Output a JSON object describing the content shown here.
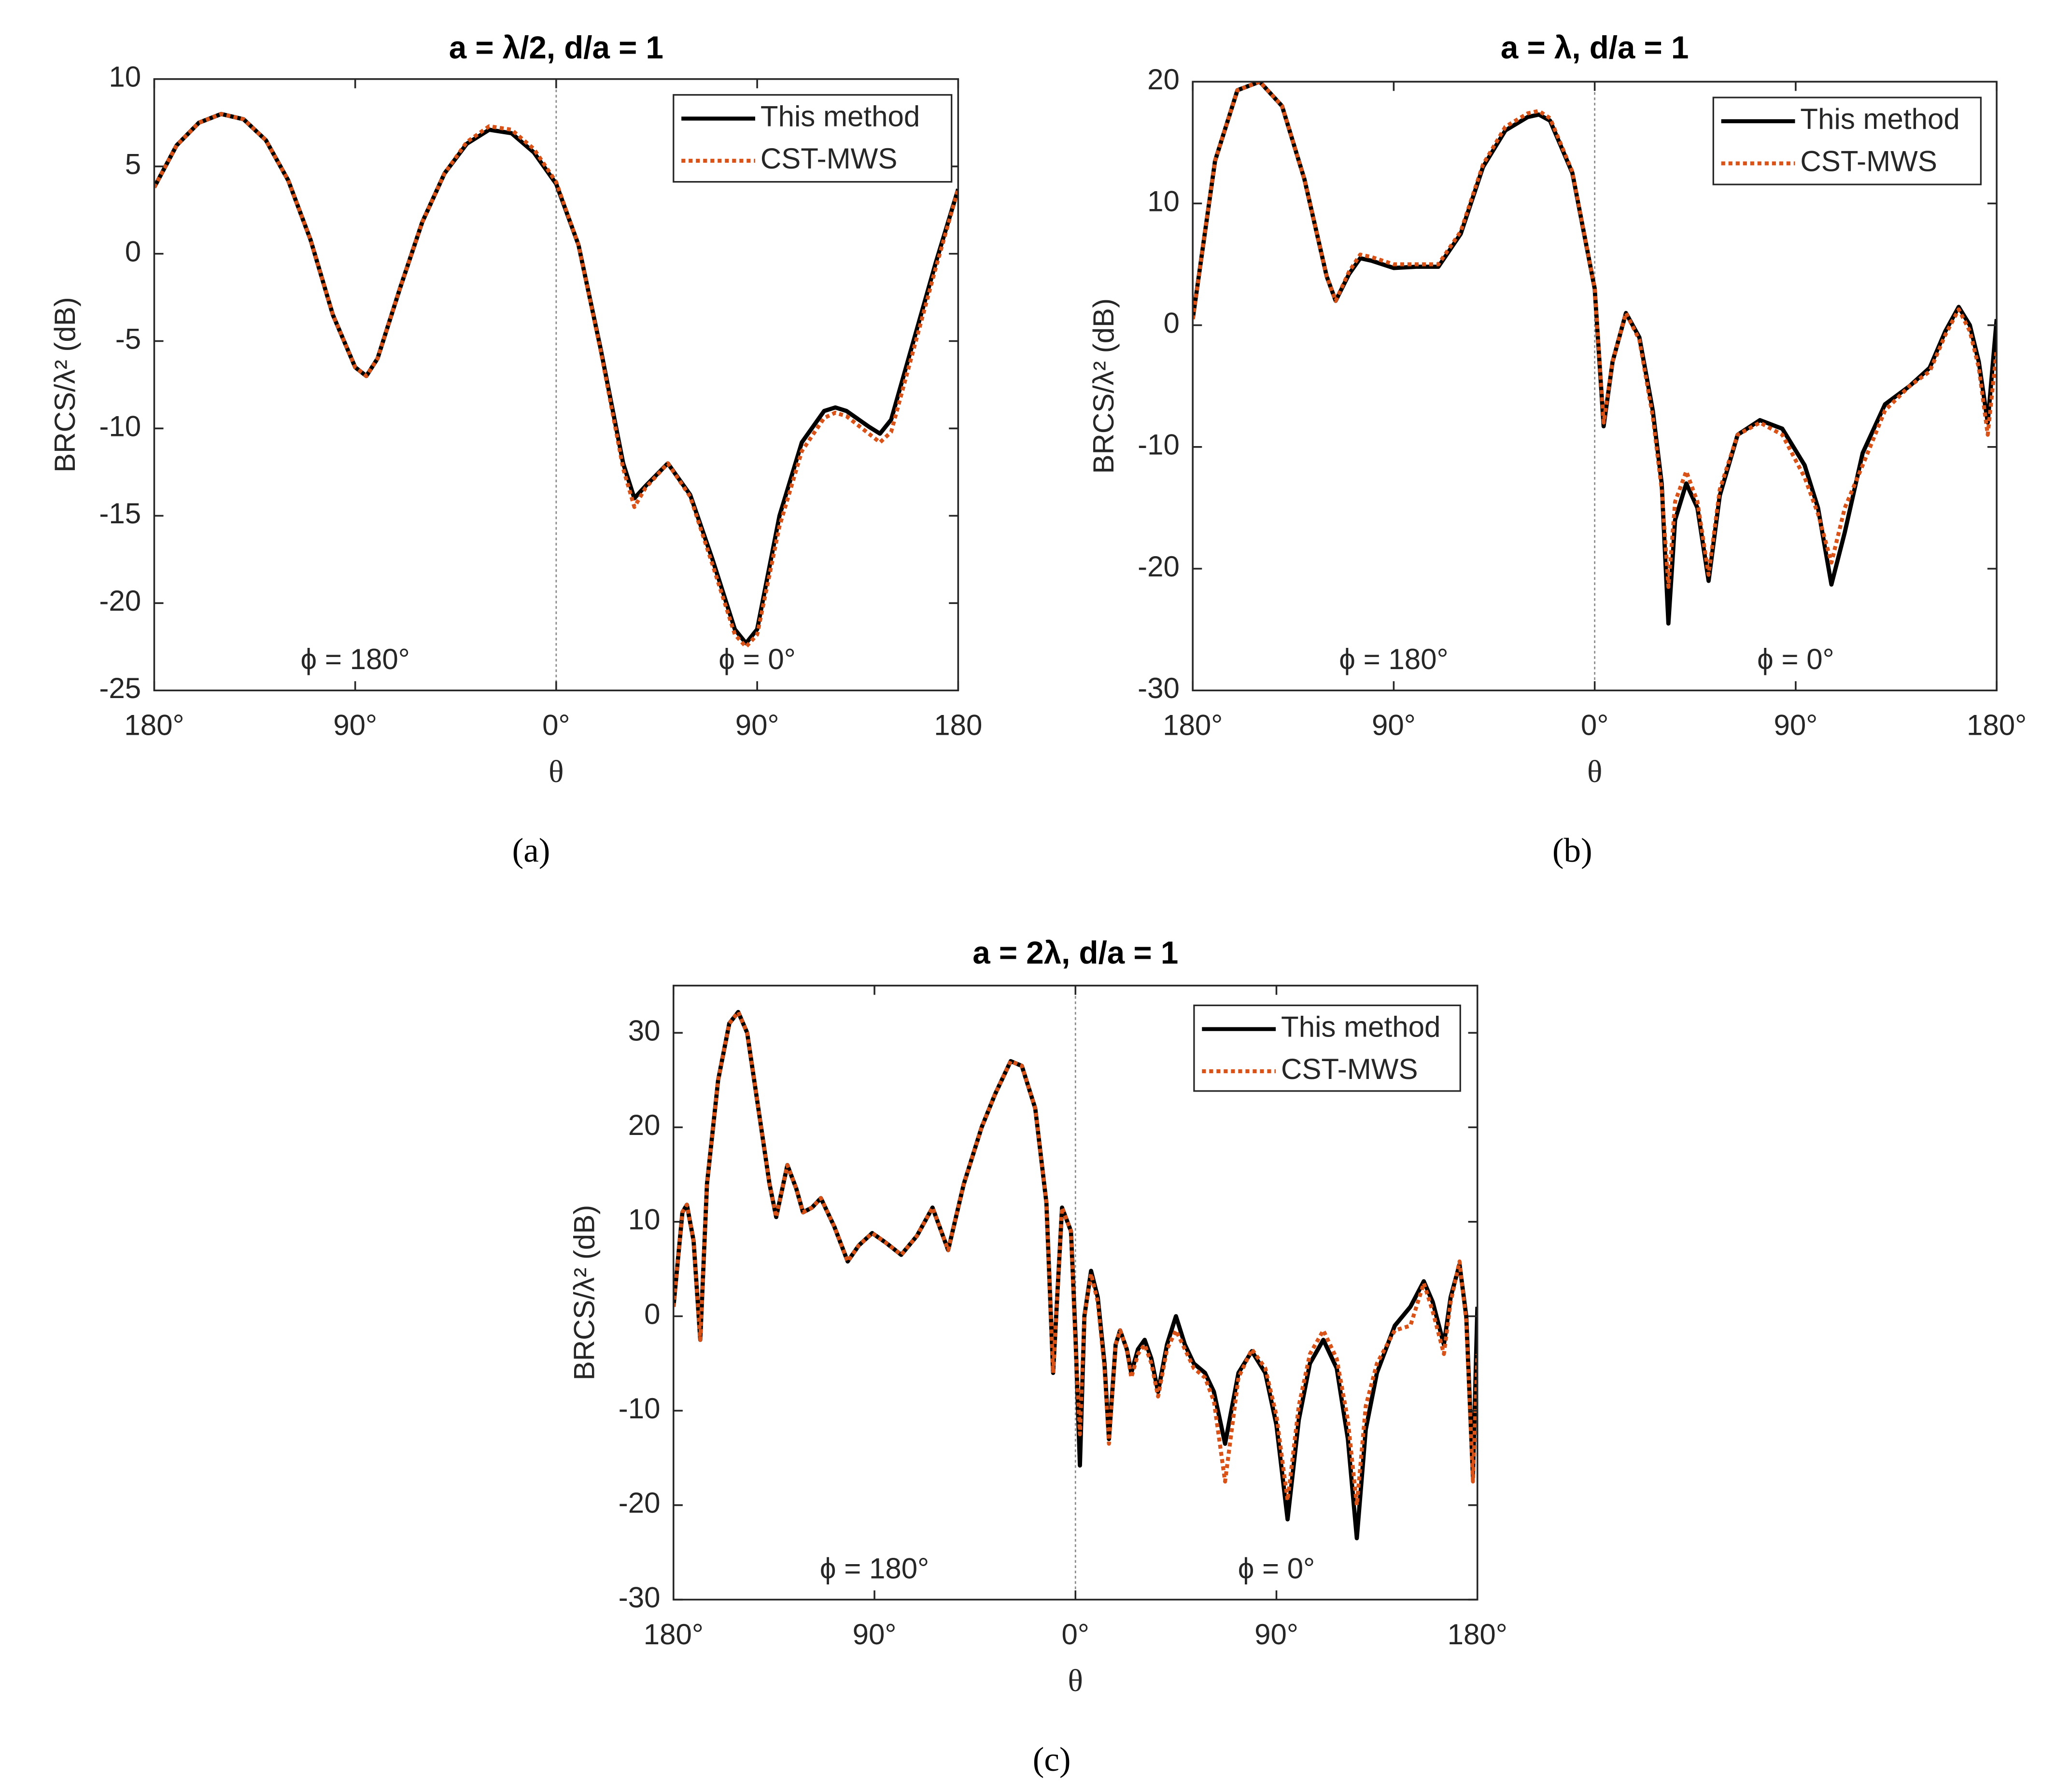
{
  "chart_data": [
    {
      "type": "line",
      "title": "a = λ/2, d/a = 1",
      "caption": "(a)",
      "ylabel": "BRCS/λ² (dB)",
      "xlabel": "θ",
      "annotations": [
        "ϕ = 180°",
        "ϕ = 0°"
      ],
      "xlim": [
        -180,
        180
      ],
      "ylim": [
        -25,
        10
      ],
      "xticks": [
        {
          "value": -180,
          "label": "180°"
        },
        {
          "value": -90,
          "label": "90°"
        },
        {
          "value": 0,
          "label": "0°"
        },
        {
          "value": 90,
          "label": "90°"
        },
        {
          "value": 180,
          "label": "180"
        }
      ],
      "yticks": [
        10,
        5,
        0,
        -5,
        -10,
        -15,
        -20,
        -25
      ],
      "legend": "upper right",
      "x": [
        -180,
        -170,
        -160,
        -150,
        -140,
        -130,
        -120,
        -110,
        -100,
        -90,
        -85,
        -80,
        -70,
        -60,
        -50,
        -40,
        -30,
        -20,
        -10,
        0,
        10,
        20,
        30,
        35,
        40,
        50,
        60,
        70,
        80,
        85,
        90,
        100,
        110,
        120,
        125,
        130,
        140,
        145,
        150,
        160,
        170,
        180
      ],
      "series": [
        {
          "name": "This method",
          "color": "#000000",
          "style": "solid",
          "values": [
            3.8,
            6.2,
            7.5,
            8.0,
            7.7,
            6.5,
            4.2,
            0.8,
            -3.5,
            -6.5,
            -7.0,
            -6.0,
            -2.0,
            1.8,
            4.6,
            6.3,
            7.1,
            6.9,
            5.8,
            4.0,
            0.5,
            -5.5,
            -12.0,
            -14.0,
            -13.3,
            -12.0,
            -13.8,
            -17.5,
            -21.5,
            -22.3,
            -21.5,
            -15.0,
            -10.8,
            -9.0,
            -8.8,
            -9.0,
            -9.9,
            -10.3,
            -9.5,
            -5.0,
            -0.5,
            3.7
          ]
        },
        {
          "name": "CST-MWS",
          "color": "#d95319",
          "style": "dotted",
          "values": [
            3.8,
            6.2,
            7.5,
            8.0,
            7.7,
            6.5,
            4.2,
            0.8,
            -3.5,
            -6.5,
            -7.0,
            -6.0,
            -2.0,
            1.8,
            4.6,
            6.4,
            7.3,
            7.1,
            6.0,
            4.1,
            0.5,
            -5.6,
            -12.3,
            -14.5,
            -13.4,
            -12.0,
            -13.9,
            -17.8,
            -21.8,
            -22.5,
            -21.8,
            -15.6,
            -11.3,
            -9.4,
            -9.1,
            -9.3,
            -10.3,
            -10.8,
            -10.2,
            -5.5,
            -0.8,
            3.7
          ]
        }
      ]
    },
    {
      "type": "line",
      "title": "a = λ, d/a = 1",
      "caption": "(b)",
      "ylabel": "BRCS/λ² (dB)",
      "xlabel": "θ",
      "annotations": [
        "ϕ = 180°",
        "ϕ = 0°"
      ],
      "xlim": [
        -180,
        180
      ],
      "ylim": [
        -30,
        20
      ],
      "xticks": [
        {
          "value": -180,
          "label": "180°"
        },
        {
          "value": -90,
          "label": "90°"
        },
        {
          "value": 0,
          "label": "0°"
        },
        {
          "value": 90,
          "label": "90°"
        },
        {
          "value": 180,
          "label": "180°"
        }
      ],
      "yticks": [
        20,
        10,
        0,
        -10,
        -20,
        -30
      ],
      "legend": "upper right",
      "x": [
        -180,
        -170,
        -160,
        -150,
        -140,
        -130,
        -120,
        -116,
        -110,
        -105,
        -100,
        -90,
        -80,
        -70,
        -60,
        -50,
        -40,
        -30,
        -25,
        -20,
        -10,
        0,
        4,
        8,
        14,
        20,
        26,
        30,
        33,
        36,
        41,
        46,
        51,
        56,
        64,
        74,
        84,
        94,
        100,
        106,
        112,
        120,
        130,
        141,
        150,
        157,
        163,
        168,
        172,
        176,
        180
      ],
      "series": [
        {
          "name": "This method",
          "color": "#000000",
          "style": "solid",
          "values": [
            0.5,
            13.5,
            19.3,
            20.0,
            18.0,
            12.0,
            4.0,
            2.0,
            4.2,
            5.5,
            5.3,
            4.7,
            4.8,
            4.8,
            7.5,
            13.0,
            16.0,
            17.1,
            17.3,
            16.8,
            12.5,
            3.0,
            -8.3,
            -3.0,
            1.0,
            -1.0,
            -7.0,
            -13.0,
            -24.5,
            -16.0,
            -13.0,
            -15.0,
            -21.0,
            -14.0,
            -9.0,
            -7.8,
            -8.5,
            -11.5,
            -15.0,
            -21.3,
            -17.0,
            -10.5,
            -6.5,
            -5.0,
            -3.5,
            -0.5,
            1.5,
            0.0,
            -3.0,
            -8.0,
            0.5
          ]
        },
        {
          "name": "CST-MWS",
          "color": "#d95319",
          "style": "dotted",
          "values": [
            0.5,
            13.5,
            19.3,
            20.0,
            18.0,
            12.0,
            4.0,
            2.0,
            4.4,
            5.8,
            5.6,
            5.0,
            5.0,
            5.0,
            7.7,
            13.2,
            16.3,
            17.4,
            17.6,
            17.0,
            12.6,
            3.0,
            -8.0,
            -3.0,
            1.0,
            -1.2,
            -7.5,
            -13.5,
            -21.5,
            -14.5,
            -12.0,
            -14.5,
            -20.5,
            -13.5,
            -9.0,
            -8.0,
            -9.0,
            -12.5,
            -15.5,
            -19.5,
            -15.0,
            -11.5,
            -7.0,
            -5.0,
            -3.8,
            -0.8,
            1.3,
            -0.5,
            -3.5,
            -9.0,
            -2.0
          ]
        }
      ]
    },
    {
      "type": "line",
      "title": "a = 2λ, d/a = 1",
      "caption": "(c)",
      "ylabel": "BRCS/λ² (dB)",
      "xlabel": "θ",
      "annotations": [
        "ϕ = 180°",
        "ϕ = 0°"
      ],
      "xlim": [
        -180,
        180
      ],
      "ylim": [
        -30,
        35
      ],
      "xticks": [
        {
          "value": -180,
          "label": "180°"
        },
        {
          "value": -90,
          "label": "90°"
        },
        {
          "value": 0,
          "label": "0°"
        },
        {
          "value": 90,
          "label": "90°"
        },
        {
          "value": 180,
          "label": "180°"
        }
      ],
      "yticks": [
        30,
        20,
        10,
        0,
        -10,
        -20,
        -30
      ],
      "legend": "upper right",
      "x": [
        -180,
        -176,
        -174,
        -171,
        -168,
        -165,
        -160,
        -155,
        -151,
        -147,
        -142,
        -137,
        -134,
        -129,
        -125,
        -122,
        -118,
        -114,
        -108,
        -102,
        -97,
        -91,
        -85,
        -78,
        -71,
        -64,
        -57,
        -50,
        -42,
        -36,
        -29,
        -24,
        -18,
        -13,
        -10,
        -6,
        -2,
        0,
        2,
        4,
        7,
        10,
        13,
        15,
        18,
        20,
        23,
        25,
        28,
        31,
        34,
        37,
        41,
        45,
        49,
        53,
        58,
        62,
        67,
        73,
        79,
        85,
        90,
        95,
        100,
        105,
        111,
        117,
        122,
        126,
        130,
        135,
        143,
        150,
        156,
        160,
        165,
        168,
        172,
        175,
        178,
        180
      ],
      "series": [
        {
          "name": "This method",
          "color": "#000000",
          "style": "solid",
          "values": [
            1,
            11,
            11.8,
            8,
            -2.5,
            14,
            25,
            31,
            32.2,
            30,
            22,
            14,
            10.5,
            16,
            13.5,
            11,
            11.5,
            12.5,
            9.5,
            5.8,
            7.5,
            8.8,
            7.8,
            6.5,
            8.5,
            11.5,
            7,
            14,
            20,
            23.5,
            27,
            26.5,
            22,
            12,
            -6,
            11.5,
            9,
            -2,
            -15.8,
            0,
            4.8,
            2,
            -5,
            -13,
            -3,
            -1.5,
            -3.5,
            -6,
            -3.5,
            -2.5,
            -4.5,
            -8,
            -3,
            0,
            -3,
            -5,
            -6,
            -8,
            -13.5,
            -6,
            -3.7,
            -6,
            -11.5,
            -21.5,
            -11,
            -5,
            -2.5,
            -5.5,
            -13,
            -23.5,
            -12,
            -6,
            -1,
            1,
            3.7,
            1.5,
            -3,
            2,
            5.5,
            0,
            -17,
            1
          ]
        },
        {
          "name": "CST-MWS",
          "color": "#d95319",
          "style": "dotted",
          "values": [
            1,
            11,
            11.8,
            8,
            -2.5,
            14,
            25,
            31,
            32.2,
            30,
            22,
            14,
            10.5,
            16,
            13.5,
            11,
            11.5,
            12.5,
            9.5,
            5.8,
            7.5,
            8.8,
            7.8,
            6.5,
            8.5,
            11.5,
            7,
            14,
            20,
            23.5,
            27,
            26.5,
            22,
            12,
            -6,
            11.5,
            9,
            -3,
            -12.5,
            0,
            4.5,
            1.5,
            -5.5,
            -13.5,
            -3,
            -1.5,
            -3.5,
            -6.5,
            -4,
            -3,
            -5,
            -8.5,
            -3.5,
            -1.5,
            -3.5,
            -5.5,
            -6.5,
            -9,
            -17.5,
            -6.5,
            -3.5,
            -5.5,
            -10.5,
            -19.5,
            -9.5,
            -4,
            -1.5,
            -4.5,
            -11,
            -20,
            -9.5,
            -5,
            -1.5,
            -1,
            3.5,
            0.5,
            -4,
            1.5,
            5.8,
            -0.5,
            -17.5,
            -4
          ]
        }
      ]
    }
  ]
}
